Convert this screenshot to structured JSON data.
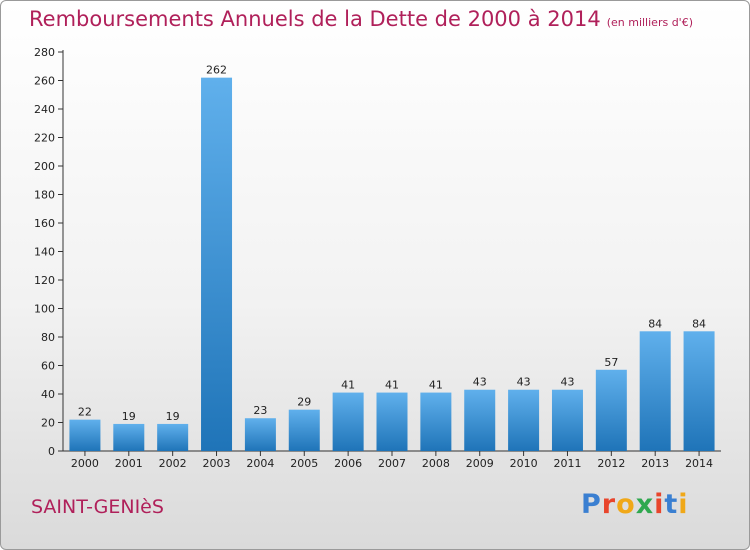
{
  "title": "Remboursements Annuels de la Dette de 2000 à 2014",
  "unit": "(en milliers d'€)",
  "commune": "SAINT-GENIèS",
  "logo": {
    "text": "Proxiti",
    "letter_colors": [
      "#3a7fd1",
      "#e8452c",
      "#f0a818",
      "#2fa84f",
      "#e8452c",
      "#3a7fd1",
      "#f0a818"
    ]
  },
  "colors": {
    "title": "#b0205a",
    "bar_light": "#60b0ec",
    "bar_dark": "#1f74b8",
    "axis": "#333333"
  },
  "chart_data": {
    "type": "bar",
    "categories": [
      "2000",
      "2001",
      "2002",
      "2003",
      "2004",
      "2005",
      "2006",
      "2007",
      "2008",
      "2009",
      "2010",
      "2011",
      "2012",
      "2013",
      "2014"
    ],
    "values": [
      22,
      19,
      19,
      262,
      23,
      29,
      41,
      41,
      41,
      43,
      43,
      43,
      57,
      84,
      84
    ],
    "ylim": [
      0,
      280
    ],
    "yticks": [
      0,
      20,
      40,
      60,
      80,
      100,
      120,
      140,
      160,
      180,
      200,
      220,
      240,
      260,
      280
    ],
    "grid": false,
    "data_labels": true
  }
}
